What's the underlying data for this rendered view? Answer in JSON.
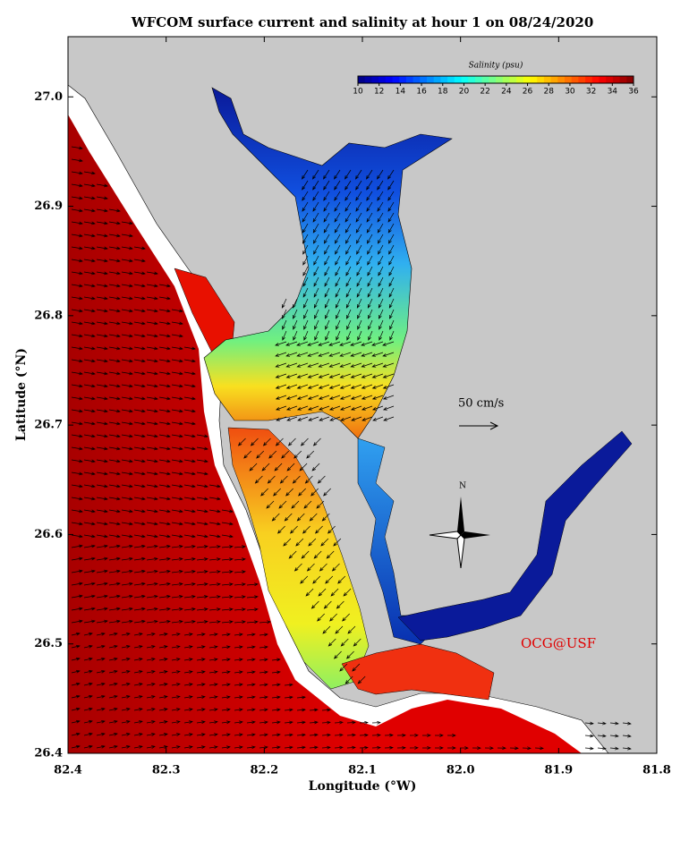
{
  "title": "WFCOM surface current and salinity at hour 1 on 08/24/2020",
  "x_axis": {
    "label": "Longitude (°W)",
    "lim": [
      82.4,
      81.8
    ],
    "ticks": [
      82.4,
      82.3,
      82.2,
      82.1,
      {
        "value": 82.0,
        "label": "82.0"
      },
      81.9,
      81.8
    ]
  },
  "y_axis": {
    "label": "Latitude (°N)",
    "lim": [
      26.4,
      27.055
    ],
    "ticks": [
      26.4,
      26.5,
      26.6,
      26.7,
      26.8,
      26.9,
      {
        "value": 27.0,
        "label": "27.0"
      }
    ]
  },
  "colorbar": {
    "label": "Salinity (psu)",
    "lim": [
      10,
      36
    ],
    "ticks": [
      10,
      12,
      14,
      16,
      18,
      20,
      22,
      24,
      26,
      28,
      30,
      32,
      34,
      36
    ]
  },
  "scale_arrow": "50 cm/s",
  "north": "N",
  "credit": "OCG@USF"
}
